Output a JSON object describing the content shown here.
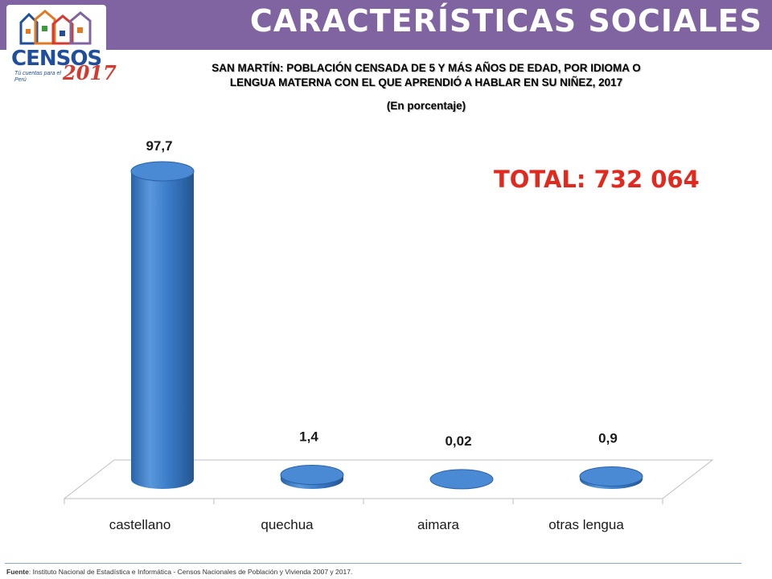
{
  "header": {
    "title": "CARACTERÍSTICAS SOCIALES"
  },
  "logo": {
    "word": "CENSOS",
    "year": "2017",
    "slogan": "Tú cuentas para el Perú"
  },
  "chart_title": {
    "line1": "SAN MARTÍN: POBLACIÓN CENSADA DE 5 Y MÁS AÑOS DE EDAD, POR IDIOMA O",
    "line2": "LENGUA MATERNA CON EL QUE APRENDIÓ A HABLAR EN SU NIÑEZ, 2017",
    "unit": "(En porcentaje)"
  },
  "total_label": "TOTAL: 732 064",
  "footer": {
    "source_label": "Fuente",
    "source_text": ": Instituto Nacional de Estadística e Informática - Censos Nacionales de Población y Vivienda 2007 y 2017."
  },
  "colors": {
    "header": "#8064a2",
    "bar": "#3a7bc8",
    "total": "#e3291e"
  },
  "chart_data": {
    "type": "bar",
    "style": "3d-cylinder",
    "categories": [
      "castellano",
      "quechua",
      "aimara",
      "otras lengua"
    ],
    "values": [
      97.7,
      1.4,
      0.02,
      0.9
    ],
    "data_labels": [
      "97,7",
      "1,4",
      "0,02",
      "0,9"
    ],
    "ylim": [
      0,
      100
    ],
    "grid": false,
    "legend": "none"
  }
}
